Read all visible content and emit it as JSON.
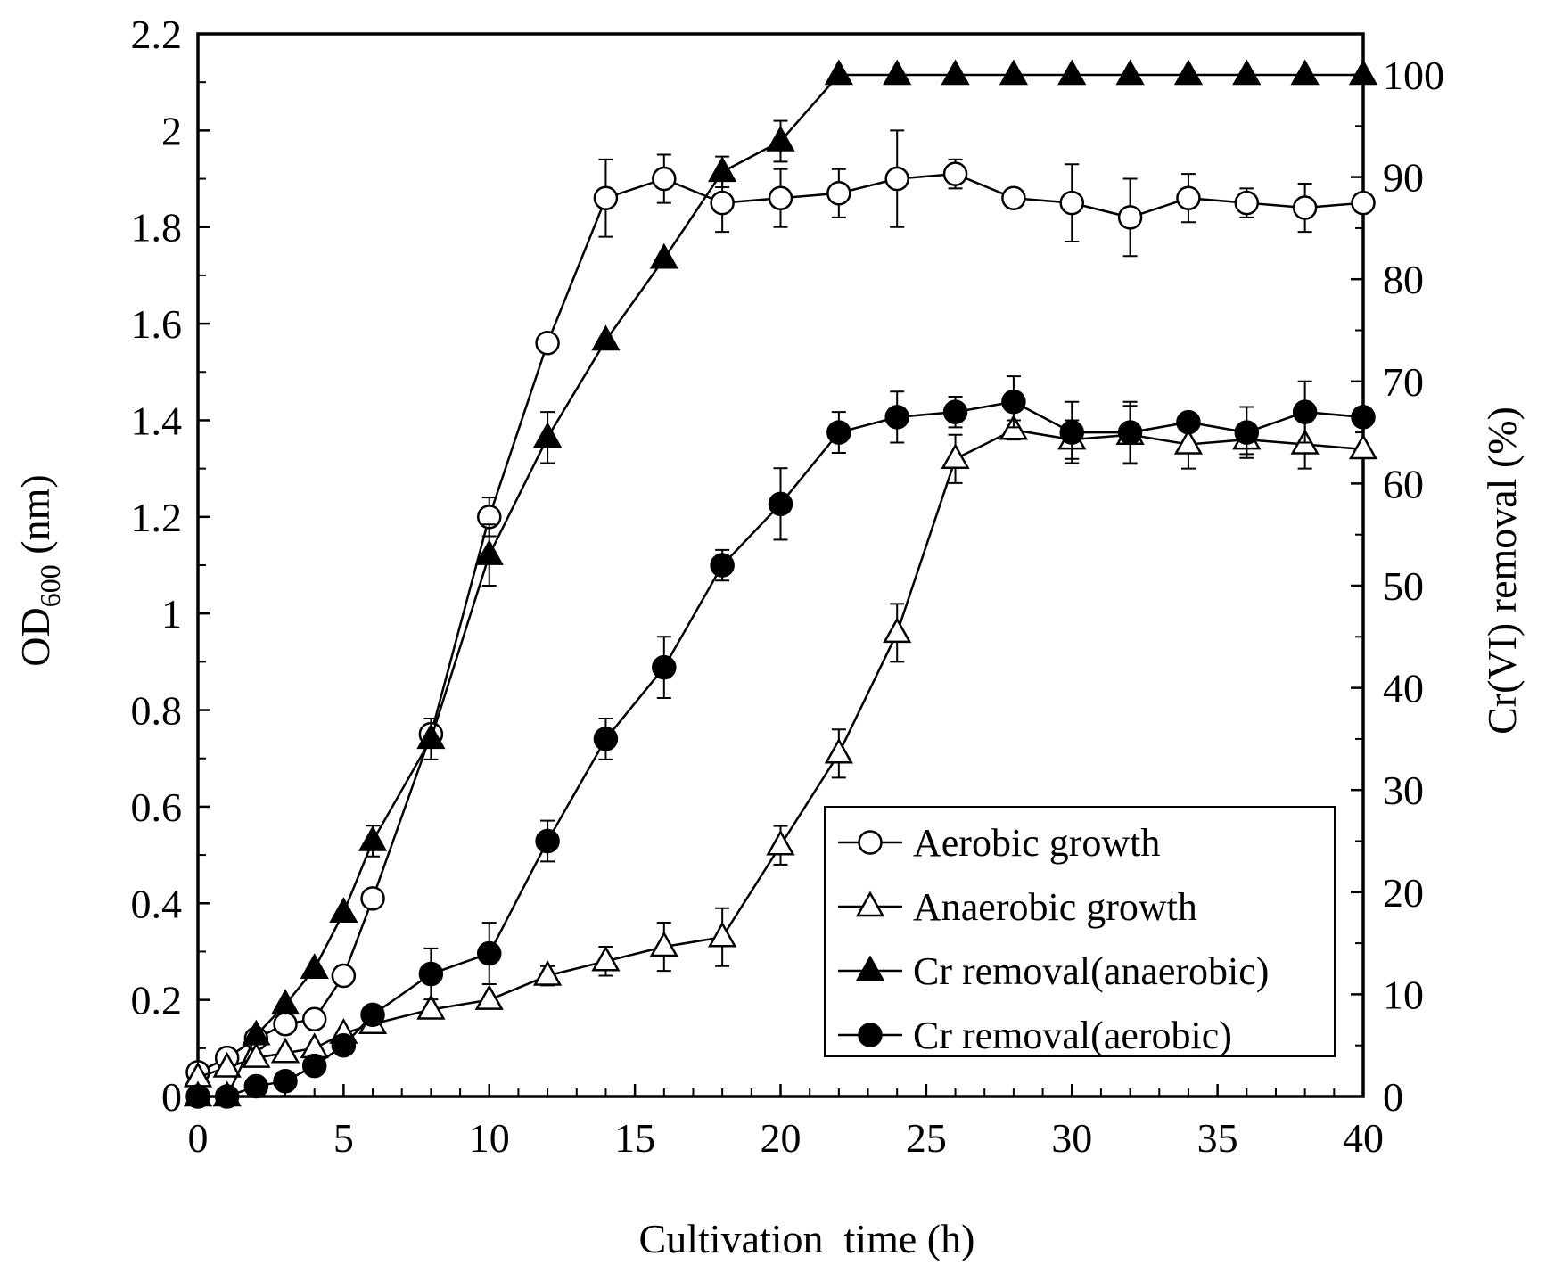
{
  "chart_data": {
    "type": "line",
    "title": "",
    "xlabel": "Cultivation  time (h)",
    "ylabel_left": {
      "main": "OD",
      "sub": "600",
      "suffix": " (nm)"
    },
    "ylabel_right": "Cr(VI) removal (%)",
    "xlim": [
      0,
      40
    ],
    "ylim_left": [
      0,
      2.2
    ],
    "ylim_right": [
      0,
      100
    ],
    "x_ticks": [
      "0",
      "5",
      "10",
      "15",
      "20",
      "25",
      "30",
      "35",
      "40"
    ],
    "y_left_ticks": [
      "0",
      "0.2",
      "0.4",
      "0.6",
      "0.8",
      "1",
      "1.2",
      "1.4",
      "1.6",
      "1.8",
      "2",
      "2.2"
    ],
    "y_right_ticks": [
      "0",
      "10",
      "20",
      "30",
      "40",
      "50",
      "60",
      "70",
      "80",
      "90",
      "100"
    ],
    "grid": false,
    "legend_position": "bottom-right",
    "series": [
      {
        "name": "Aerobic growth",
        "axis": "left",
        "marker": "open-circle",
        "x": [
          0,
          1,
          2,
          3,
          4,
          5,
          6,
          8,
          10,
          12,
          14,
          16,
          18,
          20,
          22,
          24,
          26,
          28,
          30,
          32,
          34,
          36,
          38,
          40
        ],
        "y": [
          0.05,
          0.08,
          0.12,
          0.15,
          0.16,
          0.25,
          0.41,
          0.75,
          1.2,
          1.56,
          1.86,
          1.9,
          1.85,
          1.86,
          1.87,
          1.9,
          1.91,
          1.86,
          1.85,
          1.82,
          1.86,
          1.85,
          1.84,
          1.85
        ],
        "err": [
          0,
          0,
          0,
          0,
          0,
          0,
          0,
          0.02,
          0.04,
          0,
          0.08,
          0.05,
          0.06,
          0.06,
          0.05,
          0.1,
          0.03,
          0,
          0.08,
          0.08,
          0.05,
          0.03,
          0.05,
          0
        ]
      },
      {
        "name": "Anaerobic growth",
        "axis": "left",
        "marker": "open-triangle",
        "x": [
          0,
          1,
          2,
          3,
          4,
          5,
          6,
          8,
          10,
          12,
          14,
          16,
          18,
          20,
          22,
          24,
          26,
          28,
          30,
          32,
          34,
          36,
          38,
          40
        ],
        "y": [
          0.04,
          0.06,
          0.08,
          0.09,
          0.1,
          0.13,
          0.15,
          0.18,
          0.2,
          0.25,
          0.28,
          0.31,
          0.33,
          0.52,
          0.71,
          0.96,
          1.32,
          1.38,
          1.36,
          1.37,
          1.35,
          1.36,
          1.35,
          1.34
        ],
        "err": [
          0,
          0,
          0,
          0,
          0,
          0,
          0,
          0,
          0,
          0.02,
          0.03,
          0.05,
          0.06,
          0.04,
          0.05,
          0.06,
          0.05,
          0.02,
          0.04,
          0.06,
          0.05,
          0.03,
          0.05,
          0
        ]
      },
      {
        "name": "Cr removal(anaerobic)",
        "axis": "right",
        "marker": "filled-triangle",
        "x": [
          0,
          1,
          2,
          3,
          4,
          5,
          6,
          8,
          10,
          12,
          14,
          16,
          18,
          20,
          22,
          24,
          26,
          28,
          30,
          32,
          34,
          36,
          38,
          40
        ],
        "y": [
          0,
          0,
          6,
          9,
          12.5,
          18,
          25,
          35,
          53,
          64.5,
          74,
          82,
          90.5,
          93.5,
          100,
          100,
          100,
          100,
          100,
          100,
          100,
          100,
          100,
          100
        ],
        "err": [
          0,
          0,
          0,
          0,
          0,
          0,
          1.5,
          2,
          3,
          2.5,
          0,
          0,
          1.5,
          2,
          0,
          0,
          0,
          0,
          0,
          0,
          0,
          0,
          0,
          0
        ]
      },
      {
        "name": "Cr removal(aerobic)",
        "axis": "right",
        "marker": "filled-circle",
        "x": [
          0,
          1,
          2,
          3,
          4,
          5,
          6,
          8,
          10,
          12,
          14,
          16,
          18,
          20,
          22,
          24,
          26,
          28,
          30,
          32,
          34,
          36,
          38,
          40
        ],
        "y": [
          0,
          0,
          1,
          1.5,
          3,
          5,
          8,
          12,
          14,
          25,
          35,
          42,
          52,
          58,
          65,
          66.5,
          67,
          68,
          65,
          65,
          66,
          65,
          67,
          66.5
        ],
        "err": [
          0,
          0,
          0,
          0,
          0,
          0,
          0,
          2.5,
          3,
          2,
          2,
          3,
          1.5,
          3.5,
          2,
          2.5,
          1.5,
          2.5,
          3,
          3,
          0,
          2.5,
          3,
          0
        ]
      }
    ]
  }
}
